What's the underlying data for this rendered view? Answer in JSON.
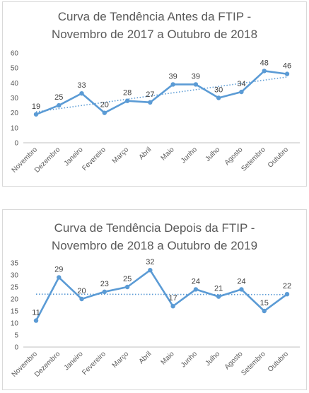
{
  "colors": {
    "series": "#5b9bd5",
    "axis": "#bfbfbf",
    "grid": "#d9d9d9",
    "text": "#595959"
  },
  "chart_data": [
    {
      "type": "line",
      "title_line1": "Curva de Tendência Antes da FTIP -",
      "title_line2": "Novembro de 2017 a Outubro de 2018",
      "categories": [
        "Novembro",
        "Dezembro",
        "Janeiro",
        "Fevereiro",
        "Março",
        "Abril",
        "Maio",
        "Junho",
        "Julho",
        "Agosto",
        "Setembro",
        "Outubro"
      ],
      "values": [
        19,
        25,
        33,
        20,
        28,
        27,
        39,
        39,
        30,
        34,
        48,
        46
      ],
      "yticks": [
        0,
        10,
        20,
        30,
        40,
        50,
        60
      ],
      "ylim": [
        0,
        60
      ],
      "trendline": "linear",
      "grid": false,
      "data_labels": true
    },
    {
      "type": "line",
      "title_line1": "Curva de Tendência Depois da FTIP -",
      "title_line2": "Novembro de 2018 a Outubro de 2019",
      "categories": [
        "Novembro",
        "Dezembro",
        "Janeiro",
        "Fevereiro",
        "Março",
        "Abril",
        "Maio",
        "Junho",
        "Julho",
        "Agosto",
        "Setembro",
        "Outubro"
      ],
      "values": [
        11,
        29,
        20,
        23,
        25,
        32,
        17,
        24,
        21,
        24,
        15,
        22
      ],
      "yticks": [
        0,
        5,
        10,
        15,
        20,
        25,
        30,
        35
      ],
      "ylim": [
        0,
        35
      ],
      "trendline": "linear",
      "grid": false,
      "data_labels": true
    }
  ]
}
